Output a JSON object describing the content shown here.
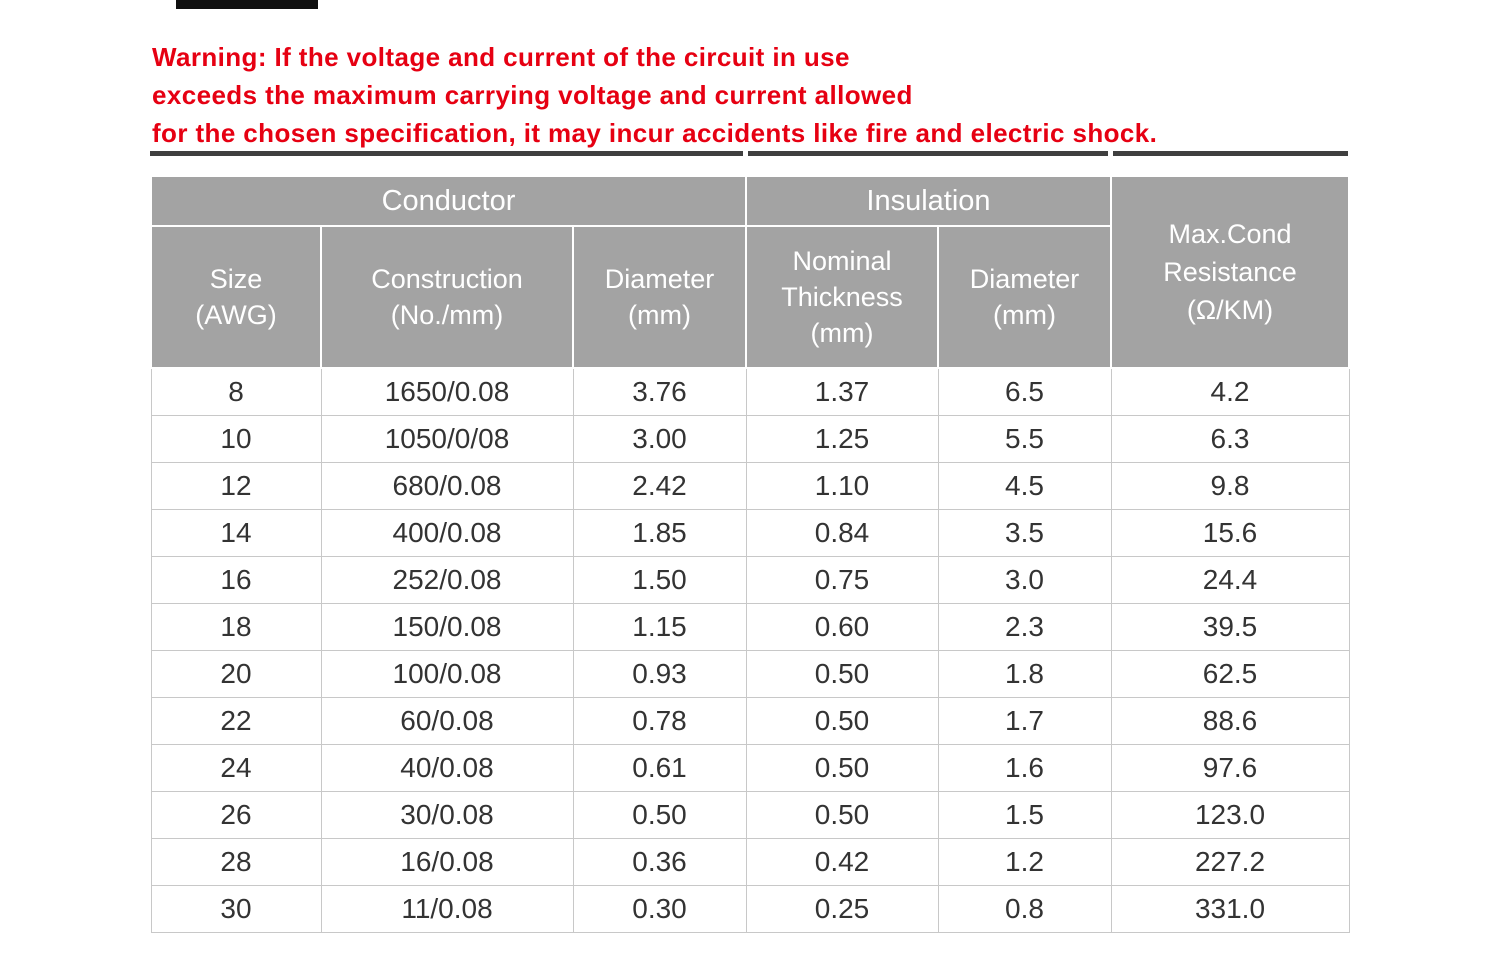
{
  "warning": {
    "color": "#e60012",
    "lines": [
      "Warning:  If the voltage and current of the circuit in use",
      "exceeds the maximum carrying voltage and current allowed",
      "for the chosen specification, it may incur accidents like fire and electric shock."
    ]
  },
  "table": {
    "header_bg": "#a3a3a3",
    "group_headers": [
      {
        "label": "Conductor"
      },
      {
        "label": "Insulation"
      }
    ],
    "resistance_header": "Max.Cond\nResistance\n(Ω/KM)",
    "columns": [
      {
        "label": "Size\n(AWG)"
      },
      {
        "label": "Construction\n(No./mm)"
      },
      {
        "label": "Diameter\n(mm)"
      },
      {
        "label": "Nominal\nThickness\n(mm)"
      },
      {
        "label": "Diameter\n(mm)"
      }
    ],
    "column_keys": [
      "size-awg",
      "construction",
      "conductor-diameter",
      "nominal-thickness",
      "insulation-diameter",
      "max-cond-resistance"
    ],
    "rows": [
      [
        "8",
        "1650/0.08",
        "3.76",
        "1.37",
        "6.5",
        "4.2"
      ],
      [
        "10",
        "1050/0/08",
        "3.00",
        "1.25",
        "5.5",
        "6.3"
      ],
      [
        "12",
        "680/0.08",
        "2.42",
        "1.10",
        "4.5",
        "9.8"
      ],
      [
        "14",
        "400/0.08",
        "1.85",
        "0.84",
        "3.5",
        "15.6"
      ],
      [
        "16",
        "252/0.08",
        "1.50",
        "0.75",
        "3.0",
        "24.4"
      ],
      [
        "18",
        "150/0.08",
        "1.15",
        "0.60",
        "2.3",
        "39.5"
      ],
      [
        "20",
        "100/0.08",
        "0.93",
        "0.50",
        "1.8",
        "62.5"
      ],
      [
        "22",
        "60/0.08",
        "0.78",
        "0.50",
        "1.7",
        "88.6"
      ],
      [
        "24",
        "40/0.08",
        "0.61",
        "0.50",
        "1.6",
        "97.6"
      ],
      [
        "26",
        "30/0.08",
        "0.50",
        "0.50",
        "1.5",
        "123.0"
      ],
      [
        "28",
        "16/0.08",
        "0.36",
        "0.42",
        "1.2",
        "227.2"
      ],
      [
        "30",
        "11/0.08",
        "0.30",
        "0.25",
        "0.8",
        "331.0"
      ]
    ]
  }
}
